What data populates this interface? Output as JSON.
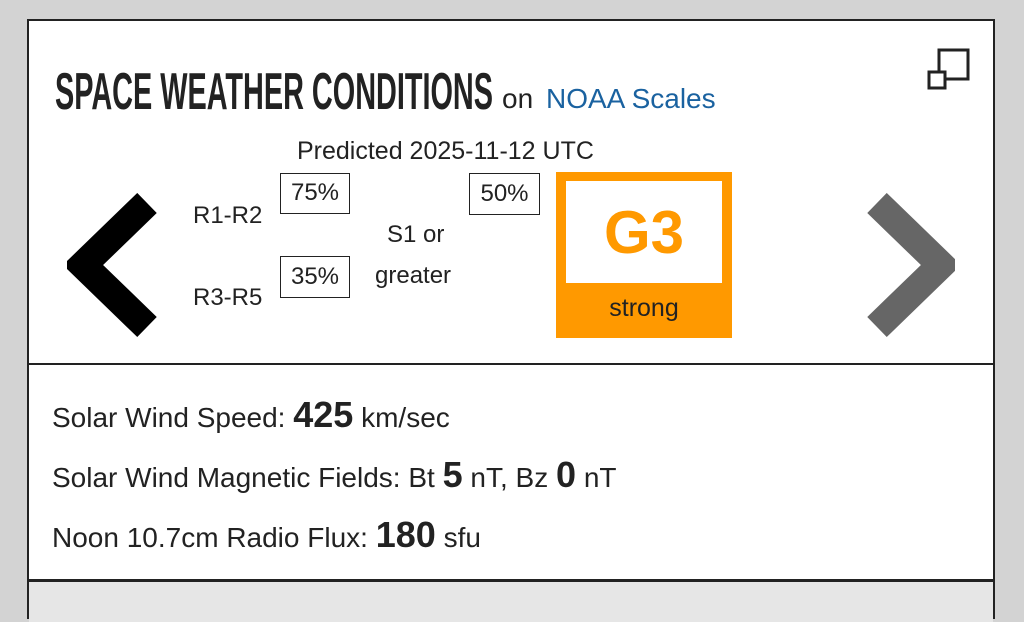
{
  "header": {
    "title": "SPACE WEATHER CONDITIONS",
    "connector": "on",
    "link": "NOAA Scales"
  },
  "prediction": {
    "label": "Predicted 2025-11-12 UTC",
    "radio_blackouts": [
      {
        "scale": "R1-R2",
        "probability": "75%"
      },
      {
        "scale": "R3-R5",
        "probability": "35%"
      }
    ],
    "solar_radiation": {
      "scale_line1": "S1 or",
      "scale_line2": "greater",
      "probability": "50%"
    },
    "geomagnetic": {
      "level": "G3",
      "description": "strong"
    }
  },
  "conditions": [
    {
      "label": "Solar Wind Speed:",
      "value": "425",
      "unit": "km/sec"
    },
    {
      "label": "Solar Wind Magnetic Fields: Bt",
      "value": "5",
      "unit": "nT, Bz",
      "value2": "0",
      "unit2": "nT"
    },
    {
      "label": "Noon 10.7cm Radio Flux:",
      "value": "180",
      "unit": "sfu"
    }
  ]
}
